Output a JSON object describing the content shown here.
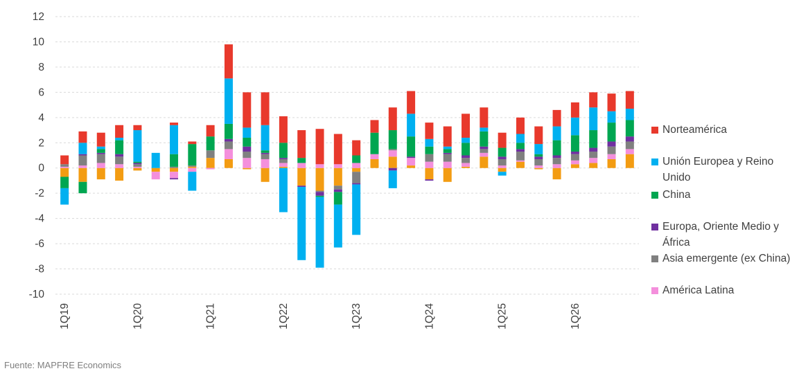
{
  "source": "Fuente: MAPFRE Economics",
  "chart_data": {
    "type": "bar",
    "stacked": true,
    "title": "",
    "xlabel": "",
    "ylabel": "",
    "ylim": [
      -10,
      12
    ],
    "yticks": [
      12,
      10,
      8,
      6,
      4,
      2,
      0,
      -2,
      -4,
      -6,
      -8,
      -10
    ],
    "grid": true,
    "legend_position": "right",
    "categories": [
      "1Q19",
      "2Q19",
      "3Q19",
      "4Q19",
      "1Q20",
      "2Q20",
      "3Q20",
      "4Q20",
      "1Q21",
      "2Q21",
      "3Q21",
      "4Q21",
      "1Q22",
      "2Q22",
      "3Q22",
      "4Q22",
      "1Q23",
      "2Q23",
      "3Q23",
      "4Q23",
      "1Q24",
      "2Q24",
      "3Q24",
      "4Q24",
      "1Q25",
      "2Q25",
      "3Q25",
      "4Q25",
      "1Q26",
      "2Q26",
      "3Q26",
      "4Q26"
    ],
    "x_tick_labels": [
      "1Q19",
      "",
      "",
      "",
      "1Q20",
      "",
      "",
      "",
      "1Q21",
      "",
      "",
      "",
      "1Q22",
      "",
      "",
      "",
      "1Q23",
      "",
      "",
      "",
      "1Q24",
      "",
      "",
      "",
      "1Q25",
      "",
      "",
      "",
      "1Q26",
      "",
      "",
      ""
    ],
    "series": [
      {
        "name": "",
        "color": "#f39c12",
        "values": [
          -0.7,
          -1.1,
          -0.9,
          -1.0,
          -0.2,
          -0.3,
          -0.3,
          0.1,
          0.8,
          0.7,
          -0.1,
          -1.1,
          0.1,
          -1.4,
          -1.8,
          -1.4,
          -0.3,
          0.7,
          0.9,
          0.2,
          -0.9,
          -1.1,
          0.1,
          0.9,
          -0.3,
          0.5,
          -0.1,
          -0.9,
          0.3,
          0.4,
          0.7,
          1.1
        ]
      },
      {
        "name": "América Latina",
        "color": "#f48fdc",
        "values": [
          0.1,
          0.2,
          0.4,
          0.3,
          0.1,
          -0.6,
          -0.5,
          -0.3,
          -0.1,
          0.8,
          0.8,
          0.7,
          0.3,
          0.4,
          0.3,
          0.3,
          0.4,
          0.4,
          0.5,
          0.6,
          0.5,
          0.5,
          0.3,
          0.3,
          0.2,
          0.1,
          0.2,
          0.3,
          0.3,
          0.4,
          0.4,
          0.4
        ]
      },
      {
        "name": "Asia emergente (ex China)",
        "color": "#808080",
        "values": [
          0.2,
          0.8,
          0.7,
          0.6,
          0.2,
          0.0,
          0.1,
          0.1,
          0.6,
          0.6,
          0.5,
          0.4,
          0.3,
          0.0,
          -0.1,
          -0.3,
          -0.9,
          0.0,
          0.1,
          0.0,
          0.6,
          0.6,
          0.4,
          0.3,
          0.5,
          0.7,
          0.5,
          0.5,
          0.5,
          0.5,
          0.6,
          0.6
        ]
      },
      {
        "name": "Europa, Oriente Medio y África",
        "color": "#7030a0",
        "values": [
          0.0,
          0.1,
          0.1,
          0.2,
          0.1,
          0.0,
          -0.1,
          0.0,
          0.0,
          0.2,
          0.4,
          0.1,
          0.1,
          -0.1,
          -0.3,
          -0.2,
          -0.1,
          0.0,
          -0.2,
          0.1,
          -0.1,
          0.1,
          0.2,
          0.2,
          0.2,
          0.2,
          0.2,
          0.2,
          0.2,
          0.3,
          0.4,
          0.4
        ]
      },
      {
        "name": "China",
        "color": "#00a651",
        "values": [
          -0.9,
          -0.9,
          0.3,
          1.1,
          0.1,
          0.0,
          1.0,
          1.7,
          1.1,
          1.2,
          0.7,
          0.2,
          1.2,
          0.4,
          -0.1,
          -1.0,
          0.6,
          1.7,
          1.5,
          1.6,
          0.6,
          0.3,
          1.0,
          1.2,
          0.7,
          0.5,
          0.2,
          1.2,
          1.3,
          1.4,
          1.5,
          1.3
        ]
      },
      {
        "name": "Unión Europea y Reino Unido",
        "color": "#00b0f0",
        "values": [
          -1.3,
          0.9,
          0.2,
          0.2,
          2.5,
          1.2,
          2.3,
          -1.5,
          0.0,
          3.6,
          0.8,
          2.0,
          -3.5,
          -5.8,
          -5.6,
          -3.4,
          -4.0,
          -0.0,
          -1.4,
          1.8,
          0.6,
          0.2,
          0.4,
          0.3,
          -0.3,
          0.7,
          0.8,
          1.1,
          1.4,
          1.8,
          0.9,
          0.9
        ]
      },
      {
        "name": "Norteamérica",
        "color": "#e8392c",
        "values": [
          0.7,
          0.9,
          1.1,
          1.0,
          0.4,
          0.0,
          0.2,
          0.2,
          0.9,
          2.7,
          2.8,
          2.6,
          2.1,
          2.2,
          2.8,
          2.4,
          1.2,
          1.0,
          1.8,
          1.8,
          1.3,
          1.6,
          1.9,
          1.6,
          1.2,
          1.3,
          1.4,
          1.3,
          1.2,
          1.2,
          1.4,
          1.4
        ]
      }
    ]
  },
  "legend_order": [
    6,
    5,
    4,
    3,
    2,
    1
  ]
}
